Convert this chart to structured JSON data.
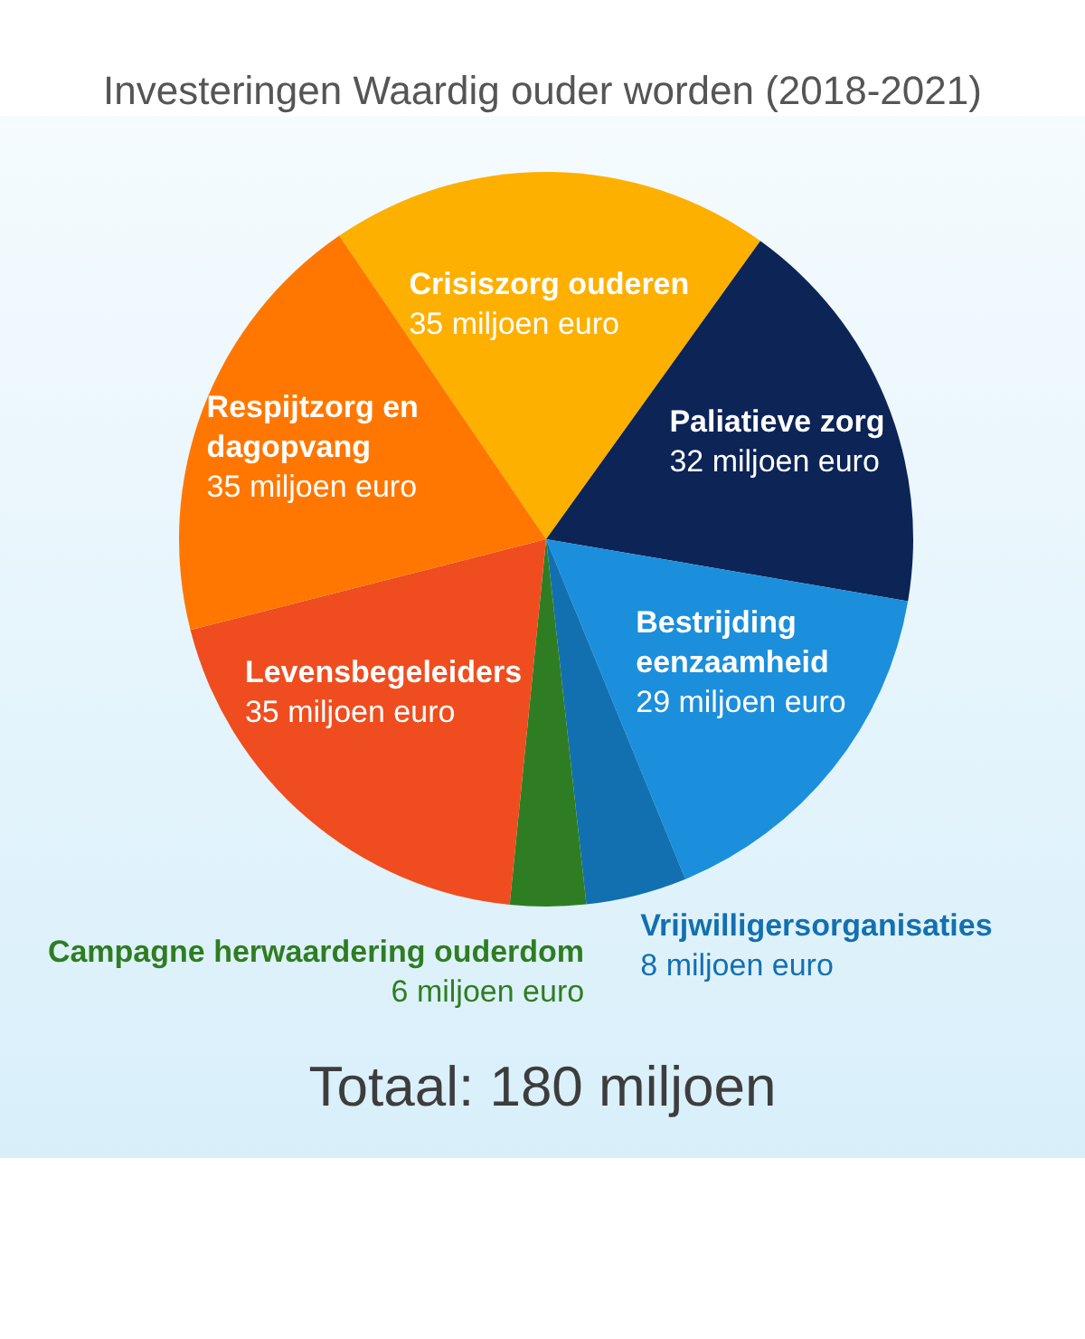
{
  "chart_data": {
    "type": "pie",
    "title": "Investeringen Waardig ouder worden (2018-2021)",
    "categories": [
      "Crisiszorg ouderen",
      "Paliatieve zorg",
      "Bestrijding eenzaamheid",
      "Vrijwilligersorganisaties",
      "Campagne herwaardering ouderdom",
      "Levensbegeleiders",
      "Respijtzorg en dagopvang"
    ],
    "values": [
      35,
      32,
      29,
      8,
      6,
      35,
      35
    ],
    "colors": [
      "#fdb000",
      "#0c2456",
      "#1b8fdc",
      "#1370b0",
      "#2f7d22",
      "#ef4d1f",
      "#ff7700"
    ],
    "value_labels": [
      "35 miljoen euro",
      "32 miljoen euro",
      "29 miljoen euro",
      "8 miljoen euro",
      "6 miljoen euro",
      "35 miljoen euro",
      "35 miljoen euro"
    ],
    "annotations": [
      "Totaal: 180 miljoen"
    ]
  }
}
